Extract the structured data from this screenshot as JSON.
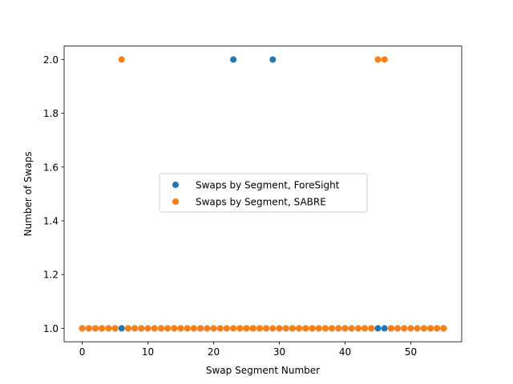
{
  "chart_data": {
    "type": "scatter",
    "title": "",
    "xlabel": "Swap Segment Number",
    "ylabel": "Number of Swaps",
    "xlim": [
      -2.75,
      57.75
    ],
    "ylim": [
      0.95,
      2.05
    ],
    "xticks": [
      0,
      10,
      20,
      30,
      40,
      50
    ],
    "yticks": [
      1.0,
      1.2,
      1.4,
      1.6,
      1.8,
      2.0
    ],
    "grid": false,
    "legend_position": "center-left",
    "series": [
      {
        "name": "Swaps by Segment, ForeSight",
        "color": "#1f77b4",
        "x": [
          0,
          1,
          2,
          3,
          4,
          5,
          6,
          7,
          8,
          9,
          10,
          11,
          12,
          13,
          14,
          15,
          16,
          17,
          18,
          19,
          20,
          21,
          22,
          23,
          24,
          25,
          26,
          27,
          28,
          29,
          30,
          31,
          32,
          33,
          34,
          35,
          36,
          37,
          38,
          39,
          40,
          41,
          42,
          43,
          44,
          45,
          46,
          47,
          48,
          49,
          50,
          51,
          52,
          53,
          54,
          55
        ],
        "y": [
          1,
          1,
          1,
          1,
          1,
          1,
          1,
          1,
          1,
          1,
          1,
          1,
          1,
          1,
          1,
          1,
          1,
          1,
          1,
          1,
          1,
          1,
          1,
          2,
          1,
          1,
          1,
          1,
          1,
          2,
          1,
          1,
          1,
          1,
          1,
          1,
          1,
          1,
          1,
          1,
          1,
          1,
          1,
          1,
          1,
          1,
          1,
          1,
          1,
          1,
          1,
          1,
          1,
          1,
          1,
          1
        ]
      },
      {
        "name": "Swaps by Segment, SABRE",
        "color": "#ff7f0e",
        "x": [
          0,
          1,
          2,
          3,
          4,
          5,
          6,
          7,
          8,
          9,
          10,
          11,
          12,
          13,
          14,
          15,
          16,
          17,
          18,
          19,
          20,
          21,
          22,
          23,
          24,
          25,
          26,
          27,
          28,
          29,
          30,
          31,
          32,
          33,
          34,
          35,
          36,
          37,
          38,
          39,
          40,
          41,
          42,
          43,
          44,
          45,
          46,
          47,
          48,
          49,
          50,
          51,
          52,
          53,
          54,
          55
        ],
        "y": [
          1,
          1,
          1,
          1,
          1,
          1,
          2,
          1,
          1,
          1,
          1,
          1,
          1,
          1,
          1,
          1,
          1,
          1,
          1,
          1,
          1,
          1,
          1,
          1,
          1,
          1,
          1,
          1,
          1,
          1,
          1,
          1,
          1,
          1,
          1,
          1,
          1,
          1,
          1,
          1,
          1,
          1,
          1,
          1,
          1,
          2,
          2,
          1,
          1,
          1,
          1,
          1,
          1,
          1,
          1,
          1
        ]
      }
    ]
  }
}
